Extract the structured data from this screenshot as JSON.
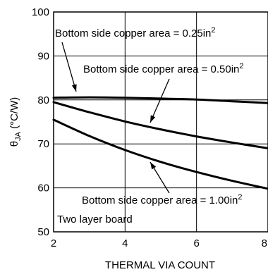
{
  "chart_data": {
    "type": "line",
    "xlabel": "THERMAL VIA COUNT",
    "ylabel_main": "θ",
    "ylabel_sub": "JA",
    "ylabel_unit": " (°C/W)",
    "xlim": [
      2,
      8
    ],
    "ylim": [
      50,
      100
    ],
    "xticks": [
      2,
      4,
      6,
      8
    ],
    "yticks": [
      50,
      60,
      70,
      80,
      90,
      100
    ],
    "grid": true,
    "series": [
      {
        "label_base": "Bottom side copper area = 0.25in",
        "label_sup": "2",
        "x": [
          2,
          3,
          4,
          5,
          6,
          7,
          8
        ],
        "y": [
          80.5,
          80.6,
          80.5,
          80.3,
          80.1,
          79.7,
          79.3
        ]
      },
      {
        "label_base": "Bottom side copper area = 0.50in",
        "label_sup": "2",
        "x": [
          2,
          3,
          4,
          5,
          6,
          7,
          8
        ],
        "y": [
          79.5,
          77.2,
          75.1,
          73.3,
          71.7,
          70.3,
          69.0
        ]
      },
      {
        "label_base": "Bottom side copper area = 1.00in",
        "label_sup": "2",
        "x": [
          2,
          3,
          4,
          5,
          6,
          7,
          8
        ],
        "y": [
          75.5,
          71.8,
          68.6,
          65.9,
          63.6,
          61.6,
          59.8
        ]
      }
    ],
    "board_note": "Two layer board"
  }
}
